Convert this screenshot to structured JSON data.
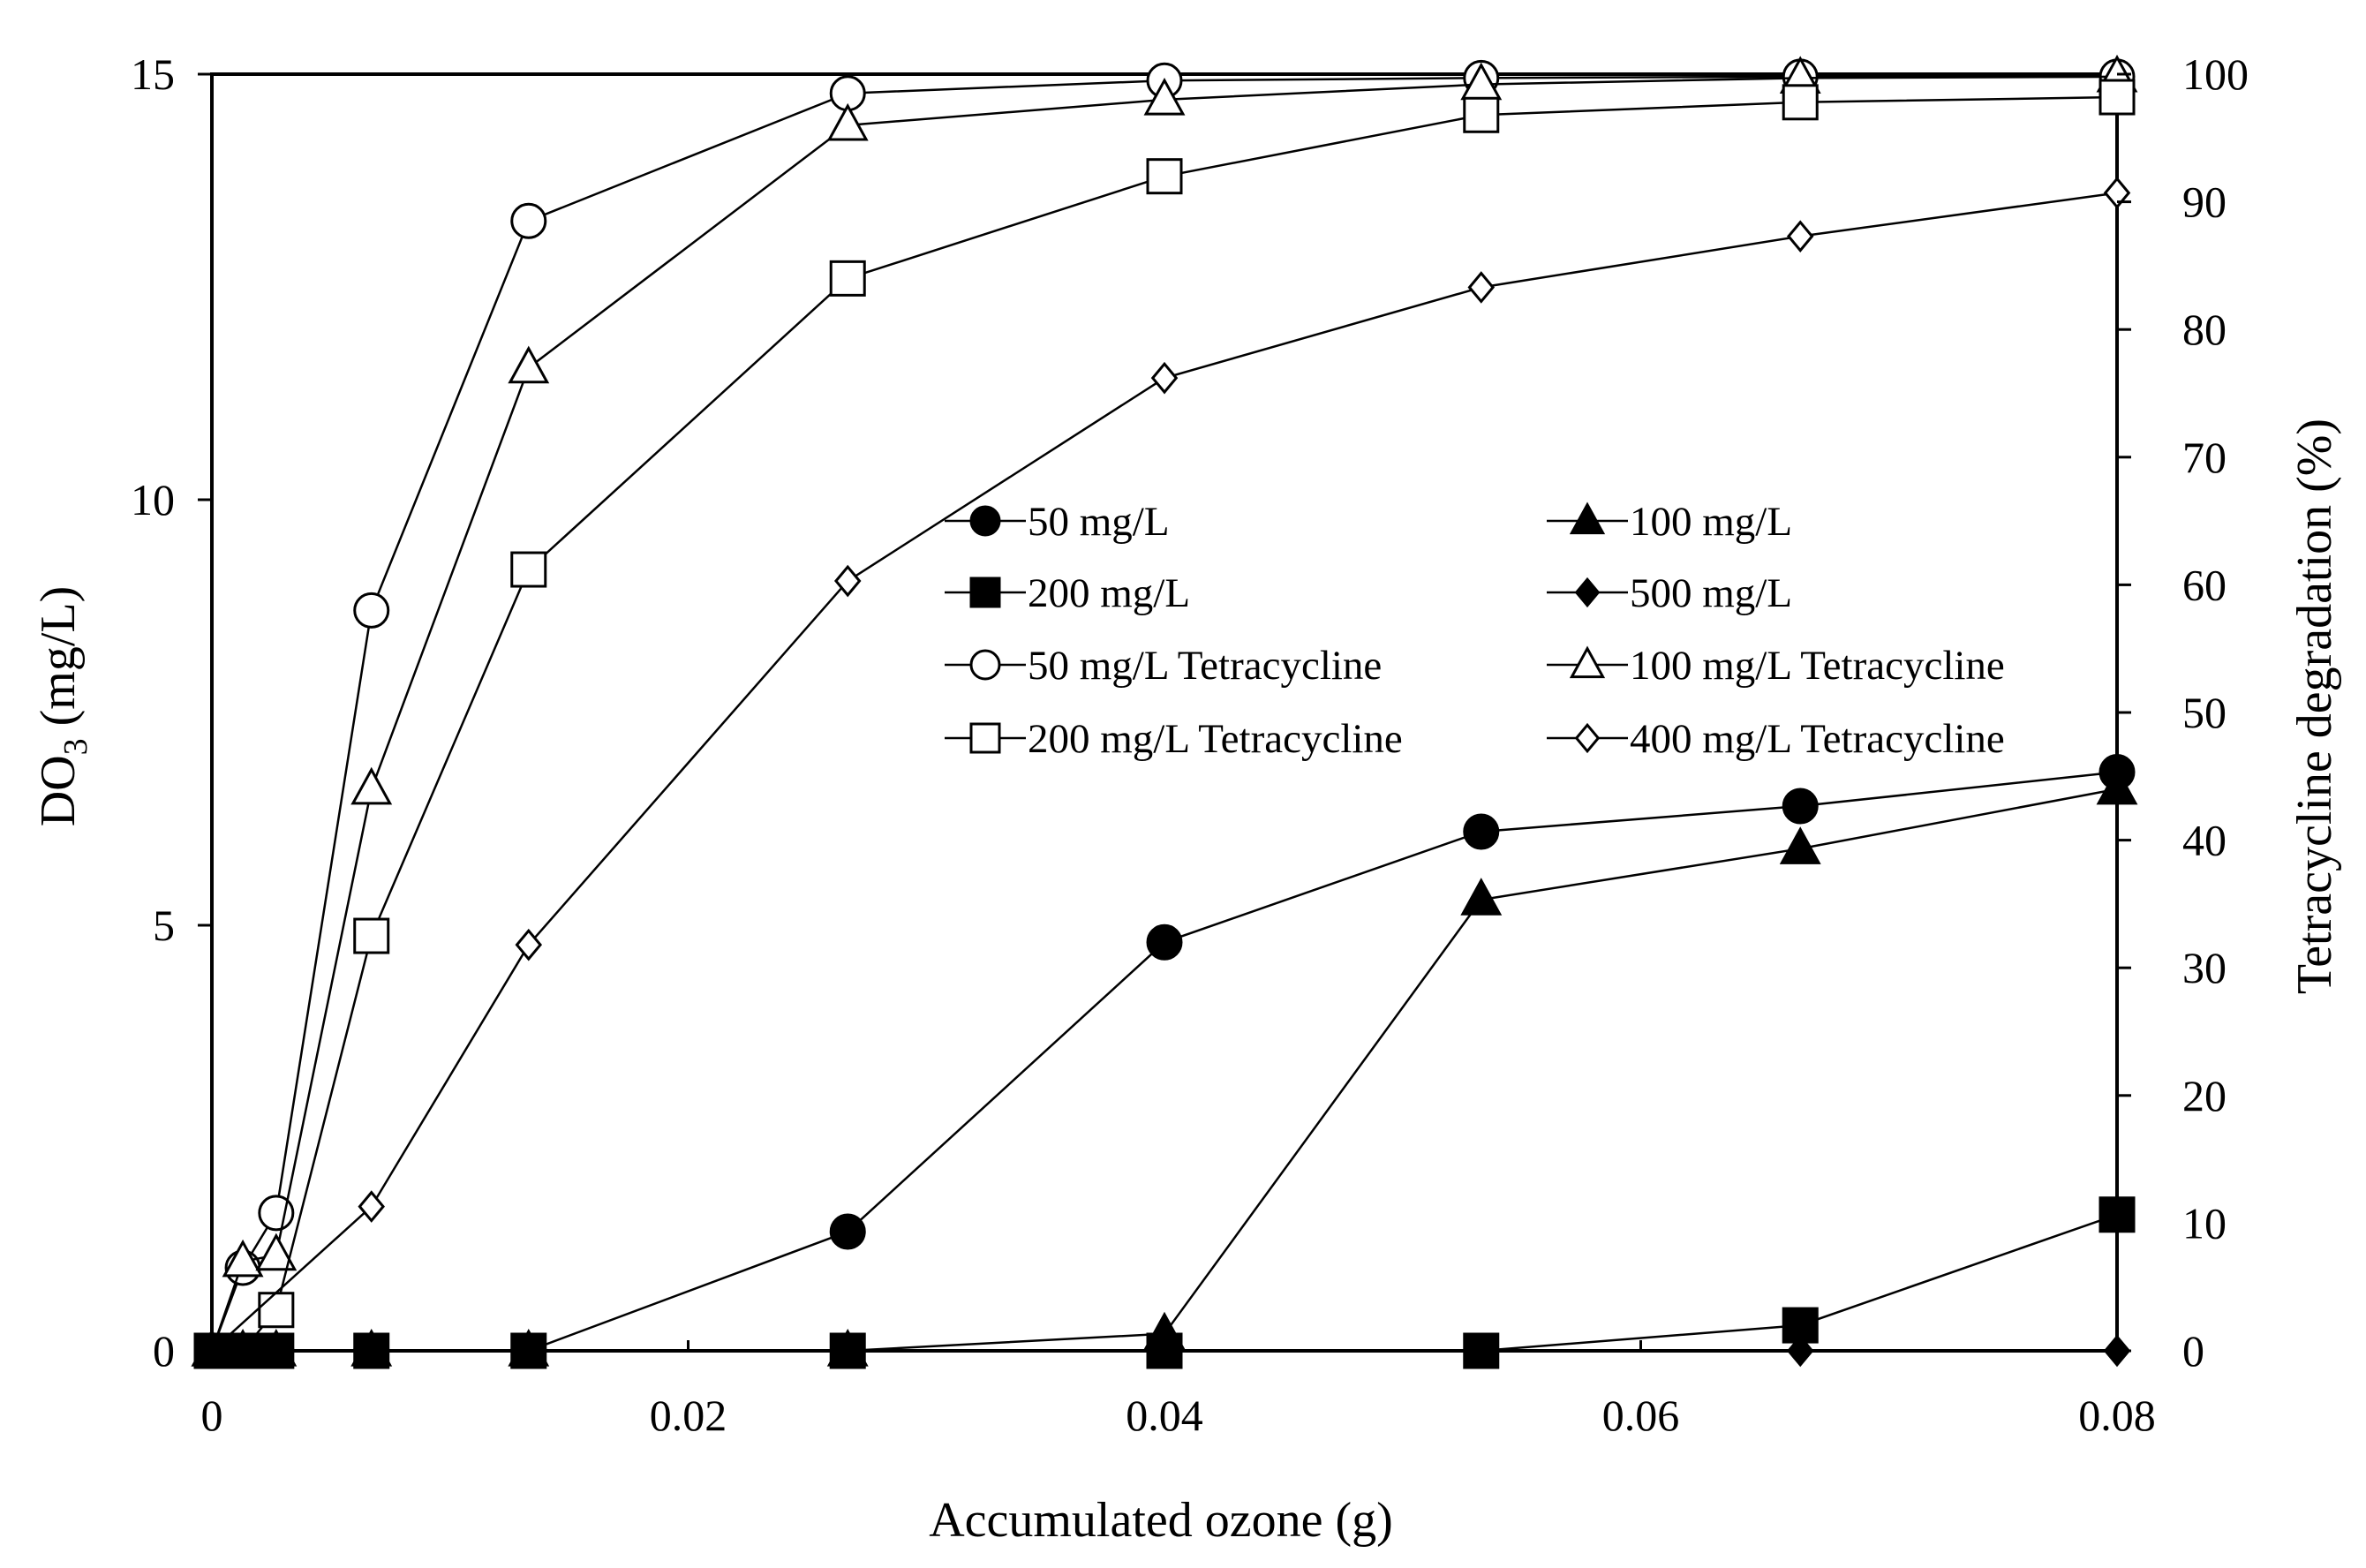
{
  "chart_data": {
    "type": "scatter",
    "xlabel": "Accumulated ozone (g)",
    "ylabel_left": "DO",
    "ylabel_left_sub": "3",
    "ylabel_left_unit": " (mg/L)",
    "ylabel_right": "Tetracycline degradation  (%)",
    "xlim": [
      0,
      0.08
    ],
    "ylim_left": [
      0,
      15
    ],
    "ylim_right": [
      0,
      100
    ],
    "xticks": [
      "0",
      "0.02",
      "0.04",
      "0.06",
      "0.08"
    ],
    "xtick_values": [
      0,
      0.02,
      0.04,
      0.06,
      0.08
    ],
    "yticks_left": [
      "0",
      "5",
      "10",
      "15"
    ],
    "ytick_values_left": [
      0,
      5,
      10,
      15
    ],
    "yticks_right": [
      "0",
      "10",
      "20",
      "30",
      "40",
      "50",
      "60",
      "70",
      "80",
      "90",
      "100"
    ],
    "ytick_values_right": [
      0,
      10,
      20,
      30,
      40,
      50,
      60,
      70,
      80,
      90,
      100
    ],
    "legend_position": "center-right",
    "grid": false,
    "series": [
      {
        "name": "50 mg/L",
        "marker": "circle",
        "fill": "filled",
        "axis": "left",
        "x": [
          0,
          0.0013,
          0.0027,
          0.0067,
          0.0133,
          0.0267,
          0.04,
          0.0533,
          0.0667,
          0.08
        ],
        "y": [
          0,
          0,
          0,
          0,
          0,
          1.4,
          4.8,
          6.1,
          6.4,
          6.8
        ]
      },
      {
        "name": "100 mg/L",
        "marker": "triangle",
        "fill": "filled",
        "axis": "left",
        "x": [
          0,
          0.0013,
          0.0027,
          0.0067,
          0.0133,
          0.0267,
          0.04,
          0.0533,
          0.0667,
          0.08
        ],
        "y": [
          0,
          0,
          0,
          0,
          0,
          0,
          0.2,
          5.3,
          5.9,
          6.6
        ]
      },
      {
        "name": "200 mg/L",
        "marker": "square",
        "fill": "filled",
        "axis": "left",
        "x": [
          0,
          0.0013,
          0.0027,
          0.0067,
          0.0133,
          0.0267,
          0.04,
          0.0533,
          0.0667,
          0.08
        ],
        "y": [
          0,
          0,
          0,
          0,
          0,
          0,
          0,
          0,
          0.3,
          1.6
        ]
      },
      {
        "name": "500 mg/L",
        "marker": "diamond",
        "fill": "filled",
        "axis": "left",
        "x": [
          0,
          0.0013,
          0.0027,
          0.0067,
          0.0133,
          0.0267,
          0.04,
          0.0533,
          0.0667,
          0.08
        ],
        "y": [
          0,
          0,
          0,
          0,
          0,
          0,
          0,
          0,
          0,
          0
        ]
      },
      {
        "name": "50 mg/L Tetracycline",
        "marker": "circle",
        "fill": "open",
        "axis": "right",
        "x": [
          0,
          0.0013,
          0.0027,
          0.0067,
          0.0133,
          0.0267,
          0.04,
          0.0533,
          0.0667,
          0.08
        ],
        "y": [
          0,
          6.5,
          10.8,
          58,
          88.5,
          98.5,
          99.5,
          99.7,
          99.8,
          99.8
        ]
      },
      {
        "name": "100 mg/L Tetracycline",
        "marker": "triangle",
        "fill": "open",
        "axis": "right",
        "x": [
          0,
          0.0013,
          0.0027,
          0.0067,
          0.0133,
          0.0267,
          0.04,
          0.0533,
          0.0667,
          0.08
        ],
        "y": [
          0,
          7,
          7.5,
          44,
          77,
          96,
          98,
          99.2,
          99.7,
          99.8
        ]
      },
      {
        "name": "200 mg/L Tetracycline",
        "marker": "square",
        "fill": "open",
        "axis": "right",
        "x": [
          0,
          0.0013,
          0.0027,
          0.0067,
          0.0133,
          0.0267,
          0.04,
          0.0533,
          0.0667,
          0.08
        ],
        "y": [
          0,
          0,
          3.2,
          32.5,
          61.2,
          84,
          92,
          96.8,
          97.8,
          98.2
        ]
      },
      {
        "name": "400 mg/L Tetracycline",
        "marker": "diamond",
        "fill": "open",
        "axis": "right",
        "x": [
          0,
          0.0067,
          0.0133,
          0.0267,
          0.04,
          0.0533,
          0.0667,
          0.08
        ],
        "y": [
          0,
          11.3,
          31.8,
          60.3,
          76.2,
          83.3,
          87.3,
          90.7
        ]
      }
    ]
  }
}
